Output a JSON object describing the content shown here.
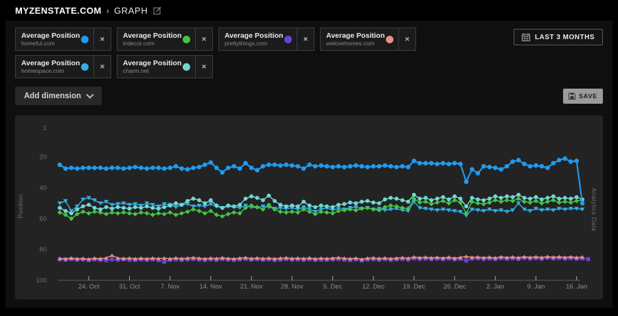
{
  "header": {
    "site": "MYZENSTATE.COM",
    "separator": "›",
    "page": "GRAPH"
  },
  "icons": {
    "close": "✕",
    "edit": "pencil-square",
    "calendar": "calendar-grid",
    "save": "floppy-disk",
    "chevron_down": "chevron-down"
  },
  "toolbar": {
    "date_range_label": "LAST 3 MONTHS",
    "add_dimension_label": "Add dimension",
    "save_label": "SAVE"
  },
  "metrics": [
    {
      "metric": "Average Position",
      "domain": "homeful.com",
      "color": "#1f9bf0"
    },
    {
      "metric": "Average Position",
      "domain": "indecor.com",
      "color": "#45c445"
    },
    {
      "metric": "Average Position",
      "domain": "prettythings.com",
      "color": "#6b42d8"
    },
    {
      "metric": "Average Position",
      "domain": "welovehomes.com",
      "color": "#e98e8a"
    },
    {
      "metric": "Average Position",
      "domain": "homespace.com",
      "color": "#33ade4"
    },
    {
      "metric": "Average Position",
      "domain": "charm.net",
      "color": "#6fd8d3"
    }
  ],
  "chart_data": {
    "type": "line",
    "ylabel": "Position",
    "right_label": "Analytics Data",
    "y_inverted": true,
    "ylim": [
      1,
      100
    ],
    "y_ticks": [
      1,
      20,
      40,
      60,
      80,
      100
    ],
    "grid": false,
    "legend_position": "chips-top",
    "n_points": 91,
    "x_ticks": [
      {
        "label": "24. Oct",
        "index": 5
      },
      {
        "label": "31. Oct",
        "index": 12
      },
      {
        "label": "7. Nov",
        "index": 19
      },
      {
        "label": "14. Nov",
        "index": 26
      },
      {
        "label": "21. Nov",
        "index": 33
      },
      {
        "label": "28. Nov",
        "index": 40
      },
      {
        "label": "5. Dec",
        "index": 47
      },
      {
        "label": "12. Dec",
        "index": 54
      },
      {
        "label": "19. Dec",
        "index": 61
      },
      {
        "label": "26. Dec",
        "index": 68
      },
      {
        "label": "2. Jan",
        "index": 75
      },
      {
        "label": "9. Jan",
        "index": 82
      },
      {
        "label": "16. Jan",
        "index": 89
      }
    ],
    "series": [
      {
        "name": "prettythings.com",
        "color": "#6b42d8",
        "marker": "square",
        "values": [
          86.5,
          86.8,
          86.3,
          86.7,
          86.5,
          87,
          86.5,
          86.8,
          87,
          86.5,
          86.8,
          86.4,
          86.8,
          87,
          86.5,
          86.8,
          86.5,
          87,
          88,
          86.8,
          86.5,
          86.8,
          86.5,
          86.3,
          86.6,
          86.9,
          86.5,
          86.8,
          86.2,
          86.6,
          86.9,
          86.5,
          86.2,
          86.7,
          86.4,
          86.8,
          86.5,
          86.9,
          86.6,
          86.3,
          86.7,
          86.5,
          86.8,
          86.4,
          86.9,
          86.6,
          86.8,
          86.5,
          86.2,
          86.6,
          86.9,
          86.5,
          87.2,
          86.6,
          86.3,
          86.7,
          86.4,
          86.8,
          86.5,
          86.2,
          86.6,
          85.8,
          86.2,
          85.9,
          86.3,
          86,
          86.4,
          85.9,
          86.5,
          86.1,
          87.2,
          86,
          85.8,
          86.2,
          85.9,
          86.3,
          85.7,
          86.1,
          85.8,
          86.2,
          85.6,
          86,
          85.7,
          86.1,
          85.5,
          85.9,
          85.6,
          86,
          85.7,
          86.1,
          85.8,
          86.2
        ]
      },
      {
        "name": "welovehomes.com",
        "color": "#e98e8a",
        "marker": "triangle-up",
        "values": [
          85.8,
          86,
          85.6,
          86,
          85.8,
          86.2,
          85.7,
          86,
          85.5,
          83.8,
          85.6,
          85.9,
          85.6,
          86,
          85.7,
          86,
          85.6,
          85.9,
          85.7,
          86,
          85.5,
          85.9,
          85.6,
          85.3,
          85.7,
          86,
          85.6,
          85.9,
          85.4,
          85.8,
          86,
          85.6,
          85.3,
          85.8,
          85.5,
          85.9,
          85.6,
          86,
          85.7,
          85.4,
          85.8,
          85.6,
          85.9,
          85.5,
          86,
          85.7,
          85.9,
          85.6,
          85.3,
          85.7,
          86,
          85.6,
          86.3,
          85.7,
          85.4,
          85.8,
          85.5,
          85.9,
          85.6,
          85.3,
          85.7,
          84.9,
          85.3,
          85,
          85.4,
          85.1,
          85.5,
          85,
          85.6,
          85.2,
          84.5,
          85.1,
          84.9,
          85.3,
          85,
          85.4,
          84.8,
          85.2,
          84.9,
          85.3,
          84.7,
          85.1,
          84.8,
          85.2,
          84.6,
          85,
          84.7,
          85.1,
          84.8,
          85.2,
          84.9
        ]
      },
      {
        "name": "homespace.com",
        "color": "#33ade4",
        "marker": "triangle-down",
        "values": [
          50,
          48.5,
          55,
          52,
          47.5,
          46.5,
          48,
          50,
          49,
          51,
          50.5,
          50,
          51,
          50.5,
          51.5,
          50,
          51,
          52,
          50.5,
          51,
          52.5,
          51,
          50.5,
          52,
          51.5,
          52,
          50.5,
          52,
          53,
          52,
          52.5,
          53,
          51.5,
          52.5,
          53,
          52,
          52.5,
          53.5,
          53,
          53.5,
          53,
          54,
          52.5,
          54,
          55.5,
          54,
          53,
          54.5,
          53.5,
          54,
          53,
          52.5,
          53.5,
          53,
          54,
          53.5,
          54.5,
          54,
          53.5,
          54.5,
          55,
          49,
          53,
          53.5,
          54,
          54.5,
          54,
          54.5,
          55,
          55.5,
          58,
          54,
          54.5,
          55,
          54,
          55,
          54.5,
          55.5,
          54.5,
          50,
          54,
          55,
          53.5,
          54.5,
          54,
          54.5,
          53.5,
          54,
          53.5,
          53.5,
          54
        ]
      },
      {
        "name": "indecor.com",
        "color": "#45c445",
        "marker": "diamond",
        "values": [
          56,
          57.5,
          60,
          57,
          55.5,
          56.5,
          55.5,
          56,
          57,
          56,
          56.5,
          56,
          56.5,
          57,
          56,
          56.5,
          57.5,
          56.5,
          57,
          56,
          57.5,
          56.5,
          55.5,
          54,
          55,
          56.5,
          55,
          57.5,
          58.5,
          57,
          56,
          56.5,
          53,
          51.5,
          52.5,
          54,
          51,
          54,
          55.5,
          56,
          55.5,
          56,
          54,
          55.5,
          57,
          55.5,
          56,
          56.5,
          55,
          54.5,
          54,
          54.5,
          53.5,
          53,
          54,
          54.5,
          52.5,
          51.5,
          52,
          53,
          53.5,
          47,
          49.5,
          49,
          50.5,
          49.5,
          48.5,
          50,
          48,
          49.5,
          56.5,
          49,
          50,
          50.5,
          49.5,
          48,
          49,
          48,
          48.5,
          47,
          49,
          49.5,
          48.5,
          50,
          49,
          48,
          49.5,
          49,
          49.5,
          48.5,
          48
        ]
      },
      {
        "name": "charm.net",
        "color": "#6fd8d3",
        "marker": "circle",
        "values": [
          53,
          55,
          56.5,
          54,
          52,
          51,
          53,
          54,
          52.5,
          53.5,
          52.5,
          53,
          53.5,
          52.5,
          53,
          52,
          53,
          53.5,
          52.5,
          51.5,
          50,
          51,
          48.5,
          47,
          48,
          50,
          48,
          51.5,
          53,
          51.5,
          52,
          51,
          47,
          45.5,
          46.5,
          48,
          45,
          48.5,
          51,
          52,
          51.5,
          52,
          49,
          51.5,
          52.5,
          51.5,
          52,
          52.5,
          51,
          50.5,
          49.5,
          50,
          49,
          48.5,
          49.5,
          50,
          47.5,
          46.5,
          47,
          48,
          49,
          44.5,
          47,
          46.5,
          48,
          47,
          46,
          47.5,
          45.5,
          47,
          52,
          46.5,
          47.5,
          48,
          47,
          45.5,
          46.5,
          45.5,
          46,
          44.5,
          46.5,
          47,
          46,
          47.5,
          46.5,
          45.5,
          47,
          46.5,
          47,
          46,
          47.5
        ]
      },
      {
        "name": "homeful.com",
        "color": "#1f9bf0",
        "marker": "circle-lg",
        "values": [
          25,
          27.5,
          27,
          27.5,
          27,
          27,
          27,
          27,
          27.5,
          27,
          27,
          27.5,
          27,
          26.5,
          27,
          27.5,
          27,
          27,
          27.5,
          27,
          26,
          27.5,
          28,
          27,
          26.5,
          25,
          23.5,
          27,
          30,
          27,
          26,
          27.5,
          24,
          27,
          28.5,
          26,
          25,
          25,
          25.5,
          25,
          25.5,
          26,
          27.5,
          25,
          26,
          25.5,
          26,
          26.5,
          26,
          26.5,
          26,
          25.5,
          26,
          26.5,
          26,
          26,
          25.5,
          26,
          26.5,
          26,
          26.5,
          22.5,
          24,
          24,
          24,
          24.5,
          24,
          24.5,
          24,
          24.5,
          36,
          28,
          30.5,
          26,
          26.5,
          27,
          28,
          26,
          23,
          22,
          24.5,
          26,
          25.5,
          26,
          27,
          24,
          22,
          21,
          23,
          22.5,
          50
        ]
      }
    ]
  }
}
